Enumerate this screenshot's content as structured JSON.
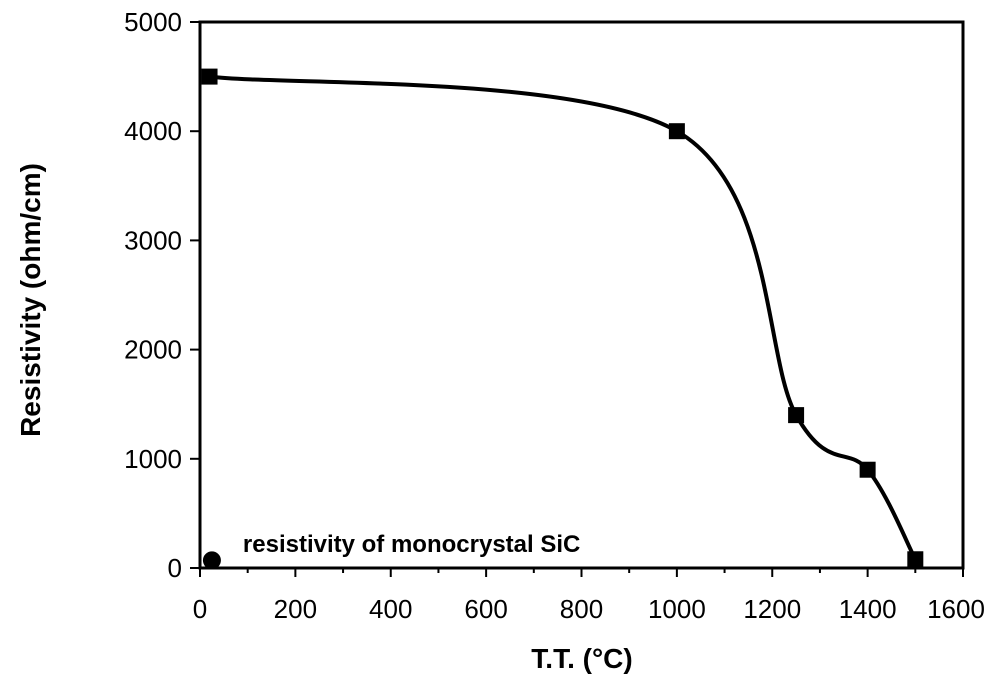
{
  "chart_data": {
    "type": "scatter",
    "title": "",
    "xlabel": "T.T. (°C)",
    "ylabel": "Resistivity (ohm/cm)",
    "xlim": [
      0,
      1600
    ],
    "ylim": [
      0,
      5000
    ],
    "x_ticks": [
      "0",
      "200",
      "400",
      "600",
      "800",
      "1000",
      "1200",
      "1400",
      "1600"
    ],
    "y_ticks": [
      "0",
      "1000",
      "2000",
      "3000",
      "4000",
      "5000"
    ],
    "grid": false,
    "series": [
      {
        "marker": "square",
        "color": "#000000",
        "x": [
          20,
          1000,
          1250,
          1400,
          1500
        ],
        "y": [
          4500,
          4000,
          1400,
          900,
          80
        ],
        "smooth_curve": true
      },
      {
        "marker": "circle",
        "color": "#000000",
        "x": [
          25
        ],
        "y": [
          70
        ]
      }
    ],
    "annotations": [
      {
        "text": "resistivity of monocrystal SiC",
        "x": 90,
        "y": 220
      }
    ]
  }
}
